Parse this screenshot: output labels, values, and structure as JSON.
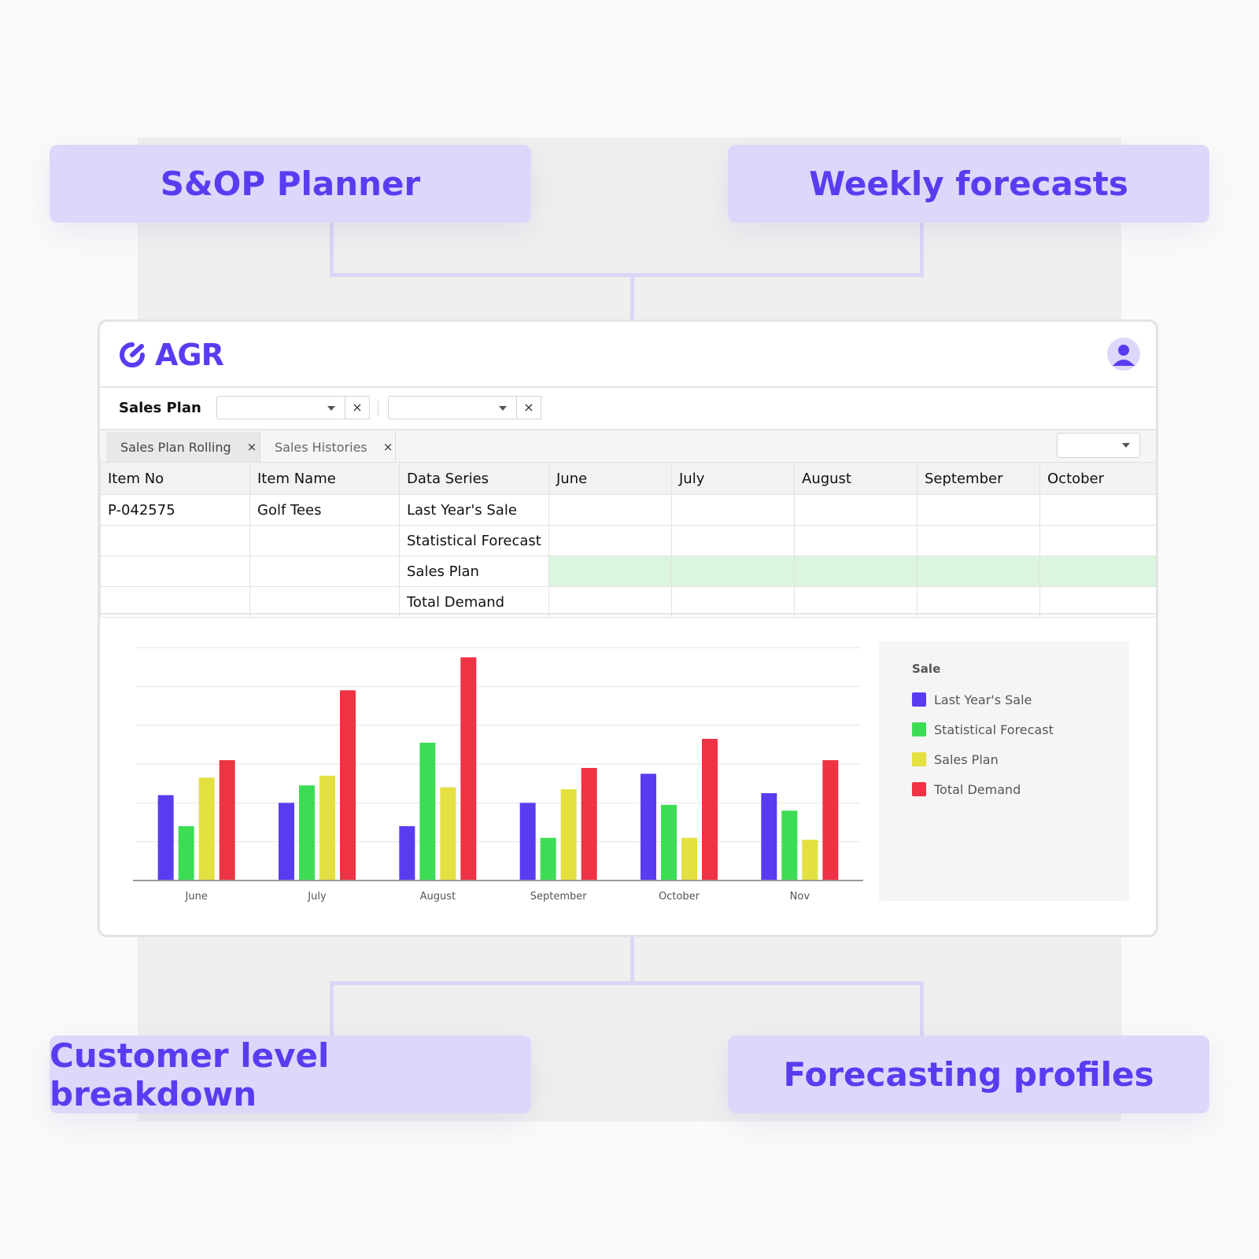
{
  "callouts": {
    "top_left": "S&OP Planner",
    "top_right": "Weekly forecasts",
    "bottom_left": "Customer level breakdown",
    "bottom_right": "Forecasting profiles"
  },
  "app": {
    "logo_text": "AGR"
  },
  "filter_bar": {
    "label": "Sales Plan",
    "select1_value": "",
    "select2_value": "",
    "clear_glyph": "×"
  },
  "tabs": [
    {
      "label": "Sales Plan Rolling",
      "close": "×"
    },
    {
      "label": "Sales Histories",
      "close": "×"
    }
  ],
  "table": {
    "headers": [
      "Item No",
      "Item Name",
      "Data Series",
      "June",
      "July",
      "August",
      "September",
      "October"
    ],
    "rows": [
      [
        "P-042575",
        "Golf Tees",
        "Last Year's Sale",
        "",
        "",
        "",
        "",
        ""
      ],
      [
        "",
        "",
        "Statistical Forecast",
        "",
        "",
        "",
        "",
        ""
      ],
      [
        "",
        "",
        "Sales Plan",
        "",
        "",
        "",
        "",
        ""
      ],
      [
        "",
        "",
        "Total Demand",
        "",
        "",
        "",
        "",
        ""
      ]
    ]
  },
  "legend": {
    "title": "Sale",
    "items": [
      {
        "label": "Last Year's Sale",
        "color": "#5a3cf0"
      },
      {
        "label": "Statistical Forecast",
        "color": "#3ddc55"
      },
      {
        "label": "Sales Plan",
        "color": "#e3e040"
      },
      {
        "label": "Total Demand",
        "color": "#ee3344"
      }
    ]
  },
  "chart_data": {
    "type": "bar",
    "categories": [
      "June",
      "July",
      "August",
      "September",
      "October",
      "Nov"
    ],
    "ylim": [
      0,
      6
    ],
    "grid": true,
    "legend_placement": "right",
    "series": [
      {
        "name": "Last Year's Sale",
        "color": "#5a3cf0",
        "values": [
          2.2,
          2.0,
          1.4,
          2.0,
          2.75,
          2.25
        ]
      },
      {
        "name": "Statistical Forecast",
        "color": "#3ddc55",
        "values": [
          1.4,
          2.45,
          3.55,
          1.1,
          1.95,
          1.8
        ]
      },
      {
        "name": "Sales Plan",
        "color": "#e3e040",
        "values": [
          2.65,
          2.7,
          2.4,
          2.35,
          1.1,
          1.05
        ]
      },
      {
        "name": "Total Demand",
        "color": "#ee3344",
        "values": [
          3.1,
          4.9,
          5.75,
          2.9,
          3.65,
          3.1
        ]
      }
    ]
  }
}
